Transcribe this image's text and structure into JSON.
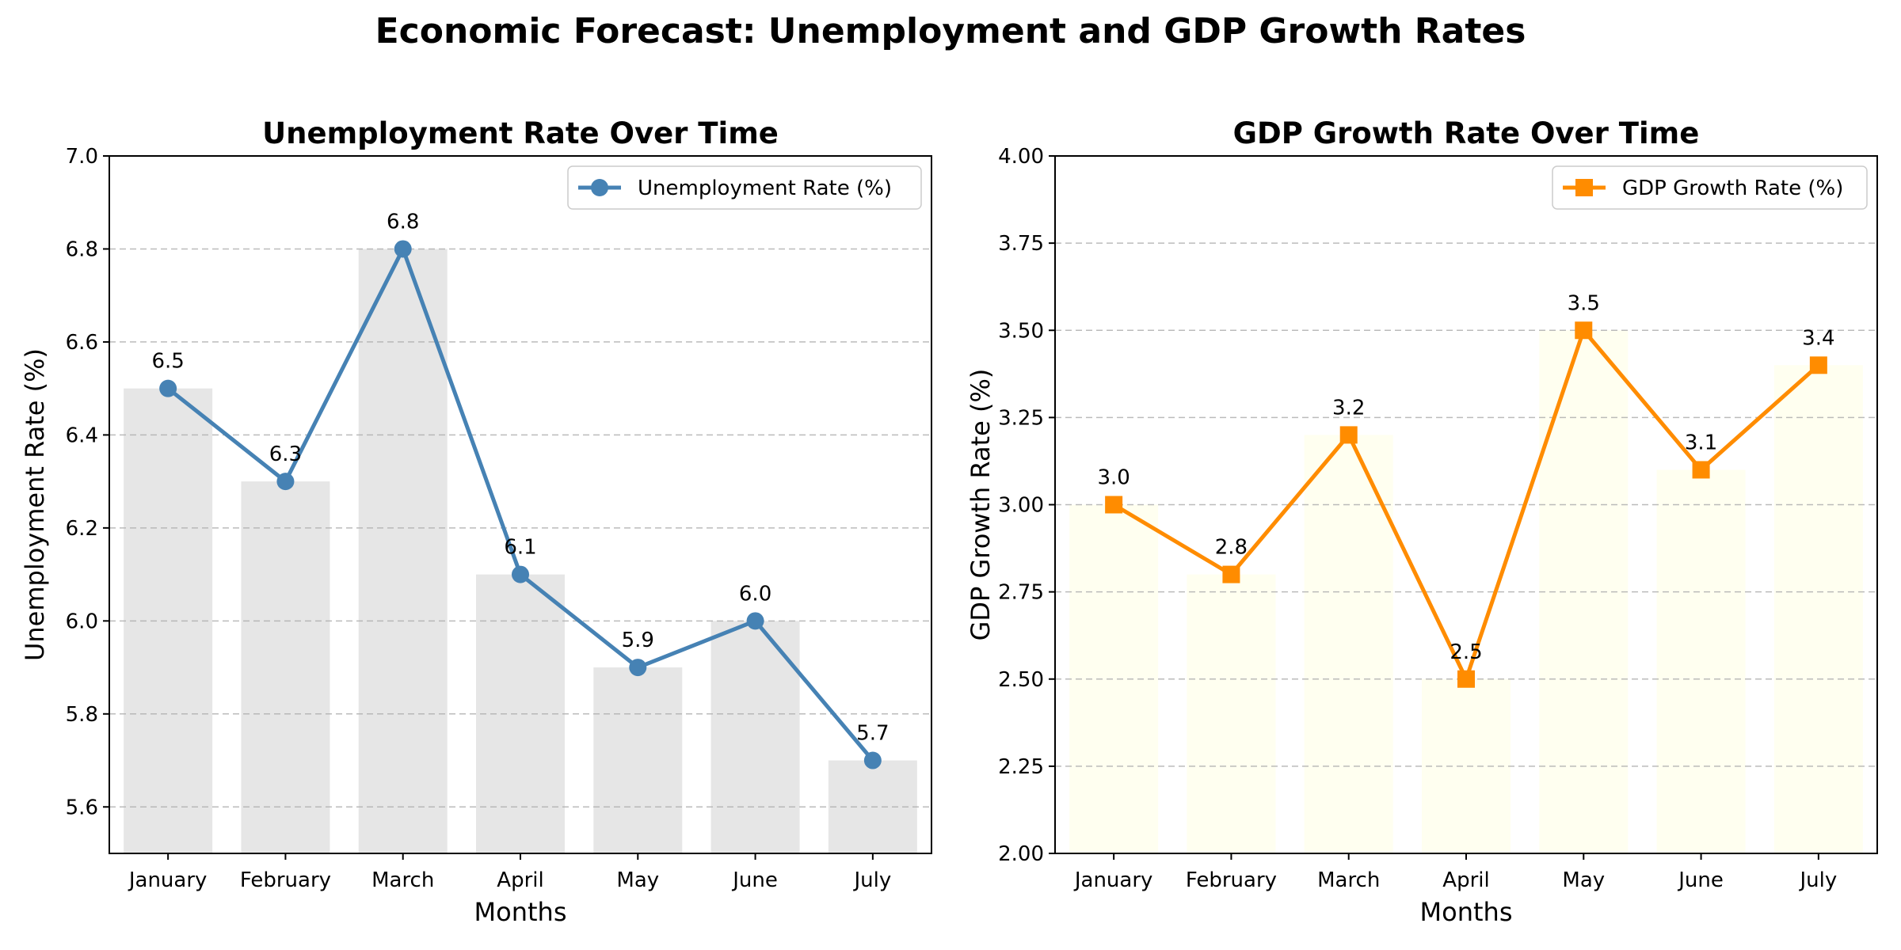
{
  "figure": {
    "title": "Economic Forecast: Unemployment and GDP Growth Rates"
  },
  "chart_data": [
    {
      "type": "line",
      "title": "Unemployment Rate Over Time",
      "xlabel": "Months",
      "ylabel": "Unemployment Rate (%)",
      "categories": [
        "January",
        "February",
        "March",
        "April",
        "May",
        "June",
        "July"
      ],
      "series": [
        {
          "name": "Unemployment Rate (%)",
          "values": [
            6.5,
            6.3,
            6.8,
            6.1,
            5.9,
            6.0,
            5.7
          ],
          "color": "#4682b4",
          "marker": "circle"
        }
      ],
      "bars": {
        "values": [
          6.5,
          6.3,
          6.8,
          6.1,
          5.9,
          6.0,
          5.7
        ],
        "color": "#e6e6e6"
      },
      "data_labels": [
        "6.5",
        "6.3",
        "6.8",
        "6.1",
        "5.9",
        "6.0",
        "5.7"
      ],
      "ylim": [
        5.5,
        7.0
      ],
      "yticks": [
        5.6,
        5.8,
        6.0,
        6.2,
        6.4,
        6.6,
        6.8,
        7.0
      ],
      "ytick_labels": [
        "5.6",
        "5.8",
        "6.0",
        "6.2",
        "6.4",
        "6.6",
        "6.8",
        "7.0"
      ],
      "grid": "y-dashed",
      "legend": "top-right"
    },
    {
      "type": "line",
      "title": "GDP Growth Rate Over Time",
      "xlabel": "Months",
      "ylabel": "GDP Growth Rate (%)",
      "categories": [
        "January",
        "February",
        "March",
        "April",
        "May",
        "June",
        "July"
      ],
      "series": [
        {
          "name": "GDP Growth Rate (%)",
          "values": [
            3.0,
            2.8,
            3.2,
            2.5,
            3.5,
            3.1,
            3.4
          ],
          "color": "#ff8c00",
          "marker": "square"
        }
      ],
      "bars": {
        "values": [
          3.0,
          2.8,
          3.2,
          2.5,
          3.5,
          3.1,
          3.4
        ],
        "color": "#fffff0"
      },
      "data_labels": [
        "3.0",
        "2.8",
        "3.2",
        "2.5",
        "3.5",
        "3.1",
        "3.4"
      ],
      "ylim": [
        2.0,
        4.0
      ],
      "yticks": [
        2.0,
        2.25,
        2.5,
        2.75,
        3.0,
        3.25,
        3.5,
        3.75,
        4.0
      ],
      "ytick_labels": [
        "2.00",
        "2.25",
        "2.50",
        "2.75",
        "3.00",
        "3.25",
        "3.50",
        "3.75",
        "4.00"
      ],
      "grid": "y-dashed",
      "legend": "top-right"
    }
  ]
}
